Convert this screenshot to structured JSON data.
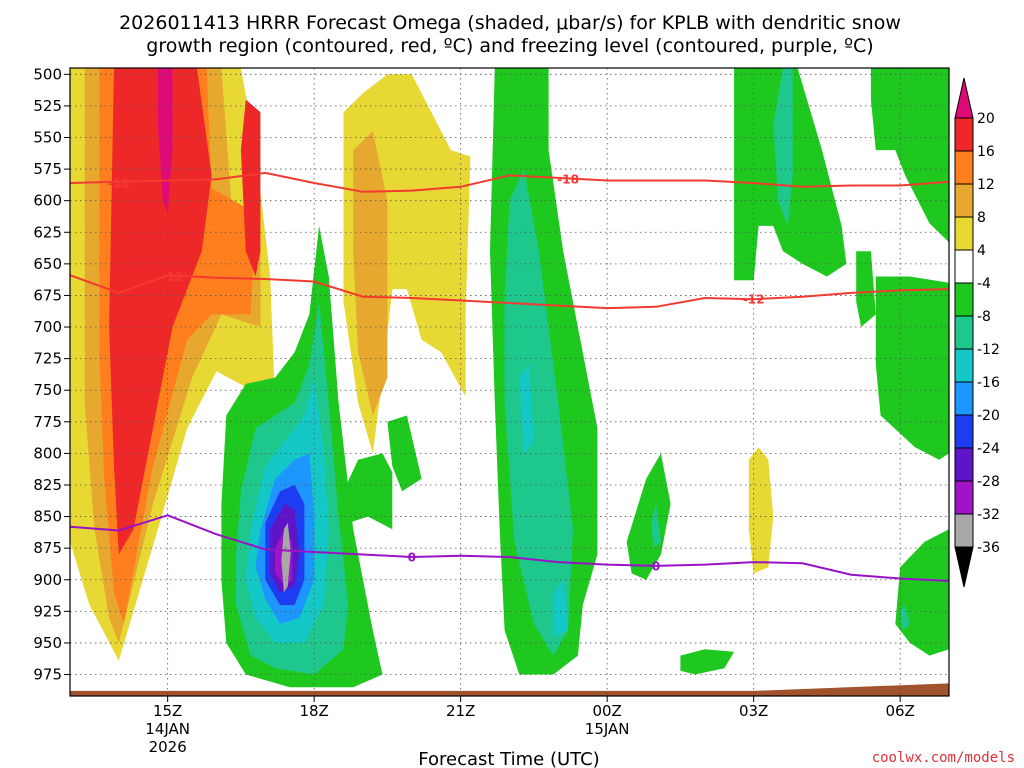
{
  "chart_data": {
    "type": "contour",
    "title_lines": [
      "2026011413 HRRR Forecast Omega (shaded, μbar/s) for KPLB with dendritic snow",
      "growth region (contoured, red, ºC) and freezing level (contoured, purple, ºC)"
    ],
    "xlabel": "Forecast Time (UTC)",
    "credit": "coolwx.com/models",
    "y_ticks": [
      "500",
      "525",
      "550",
      "575",
      "600",
      "625",
      "650",
      "675",
      "700",
      "725",
      "750",
      "775",
      "800",
      "825",
      "850",
      "875",
      "900",
      "925",
      "950",
      "975"
    ],
    "x_ticks": [
      {
        "hour": 15,
        "lines": [
          "15Z",
          "14JAN",
          "2026"
        ]
      },
      {
        "hour": 18,
        "lines": [
          "18Z"
        ]
      },
      {
        "hour": 21,
        "lines": [
          "21Z"
        ]
      },
      {
        "hour": 24,
        "lines": [
          "00Z",
          "15JAN"
        ]
      },
      {
        "hour": 27,
        "lines": [
          "03Z"
        ]
      },
      {
        "hour": 30,
        "lines": [
          "06Z"
        ]
      }
    ],
    "x_range": [
      13,
      31
    ],
    "y_range": [
      495,
      992
    ],
    "colorbar": {
      "levels": [
        "20",
        "16",
        "12",
        "8",
        "4",
        "-4",
        "-8",
        "-12",
        "-16",
        "-20",
        "-24",
        "-28",
        "-32",
        "-36"
      ],
      "colors": [
        "#dd0a78",
        "#ee2828",
        "#ff7f1e",
        "#e6a82e",
        "#e8d834",
        "#ffffff",
        "#1ec81e",
        "#1ec88c",
        "#14c8c8",
        "#1e96ff",
        "#1e3cf0",
        "#6014c8",
        "#a014c8",
        "#a8a8a8",
        "#000000"
      ]
    },
    "omega_colors": {
      "pos4": "#e8d834",
      "pos8": "#e6a82e",
      "pos12": "#ff7f1e",
      "pos16": "#ee2828",
      "pos20": "#dd0a78",
      "neg4": "#1ec81e",
      "neg8": "#1ec88c",
      "neg12": "#14c8c8",
      "neg16": "#1e96ff",
      "neg20": "#1e3cf0",
      "neg24": "#6014c8",
      "neg28": "#a014c8",
      "neg32": "#a8a8a8"
    },
    "dgz_color": "#f23a30",
    "freezing_color": "#9a12c8",
    "ground_color": "#a0522d",
    "contours": [
      {
        "name": "dgz-minus18",
        "label": "-18",
        "color": "#f23a30",
        "points": [
          [
            13,
            586
          ],
          [
            14,
            585
          ],
          [
            15,
            584
          ],
          [
            16,
            583
          ],
          [
            17,
            578
          ],
          [
            18,
            586
          ],
          [
            19,
            593
          ],
          [
            20,
            592
          ],
          [
            21,
            589
          ],
          [
            22,
            580
          ],
          [
            23,
            582
          ],
          [
            24,
            584
          ],
          [
            25,
            584
          ],
          [
            26,
            584
          ],
          [
            27,
            586
          ],
          [
            28,
            589
          ],
          [
            29,
            588
          ],
          [
            30,
            588
          ],
          [
            31,
            585
          ]
        ],
        "label_points": [
          [
            14,
            586
          ],
          [
            23.2,
            583
          ]
        ]
      },
      {
        "name": "dgz-minus12",
        "label": "-12",
        "color": "#f23a30",
        "points": [
          [
            13,
            659
          ],
          [
            14,
            673
          ],
          [
            15,
            659
          ],
          [
            16,
            661
          ],
          [
            17,
            662
          ],
          [
            18,
            664
          ],
          [
            19,
            676
          ],
          [
            20,
            677
          ],
          [
            21,
            679
          ],
          [
            22,
            681
          ],
          [
            23,
            683
          ],
          [
            24,
            685
          ],
          [
            25,
            684
          ],
          [
            26,
            677
          ],
          [
            27,
            678
          ],
          [
            28,
            676
          ],
          [
            29,
            673
          ],
          [
            30,
            671
          ],
          [
            31,
            670
          ]
        ],
        "label_points": [
          [
            15.1,
            660
          ],
          [
            27,
            678
          ]
        ]
      },
      {
        "name": "freezing-zero",
        "label": "0",
        "color": "#9a12c8",
        "points": [
          [
            13,
            858
          ],
          [
            14,
            861
          ],
          [
            15,
            849
          ],
          [
            16,
            864
          ],
          [
            17,
            876
          ],
          [
            18,
            878
          ],
          [
            19,
            880
          ],
          [
            20,
            882
          ],
          [
            21,
            881
          ],
          [
            22,
            882
          ],
          [
            23,
            886
          ],
          [
            24,
            888
          ],
          [
            25,
            889
          ],
          [
            26,
            888
          ],
          [
            27,
            886
          ],
          [
            28,
            887
          ],
          [
            29,
            896
          ],
          [
            30,
            899
          ],
          [
            31,
            901
          ]
        ],
        "label_points": [
          [
            20,
            882
          ],
          [
            25,
            889
          ]
        ]
      }
    ],
    "ground_profile": [
      [
        13,
        988
      ],
      [
        27,
        988
      ],
      [
        31,
        982
      ]
    ]
  }
}
